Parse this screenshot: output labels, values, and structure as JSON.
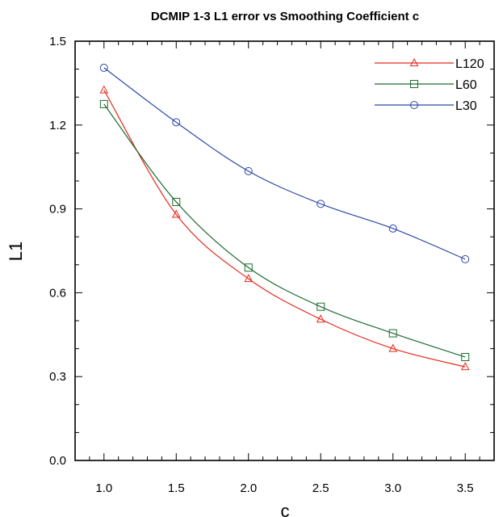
{
  "chart_data": {
    "type": "line",
    "title": "DCMIP 1-3  L1 error vs Smoothing Coefficient c",
    "xlabel": "c",
    "ylabel": "L1",
    "xlim": [
      0.8,
      3.7
    ],
    "ylim": [
      0.0,
      1.5
    ],
    "xticks": [
      "1.0",
      "1.5",
      "2.0",
      "2.5",
      "3.0",
      "3.5"
    ],
    "yticks": [
      "0.0",
      "0.3",
      "0.6",
      "0.9",
      "1.2",
      "1.5"
    ],
    "x": [
      1.0,
      1.5,
      2.0,
      2.5,
      3.0,
      3.5
    ],
    "legend_position": "top-right",
    "grid": false,
    "series": [
      {
        "name": "L120",
        "color": "#e8291c",
        "marker": "triangle",
        "values": [
          1.325,
          0.88,
          0.65,
          0.505,
          0.4,
          0.335
        ]
      },
      {
        "name": "L60",
        "color": "#1d6b2d",
        "marker": "square",
        "values": [
          1.275,
          0.925,
          0.69,
          0.55,
          0.455,
          0.37
        ]
      },
      {
        "name": "L30",
        "color": "#2b48a8",
        "marker": "circle",
        "values": [
          1.405,
          1.21,
          1.035,
          0.918,
          0.83,
          0.72
        ]
      }
    ]
  }
}
